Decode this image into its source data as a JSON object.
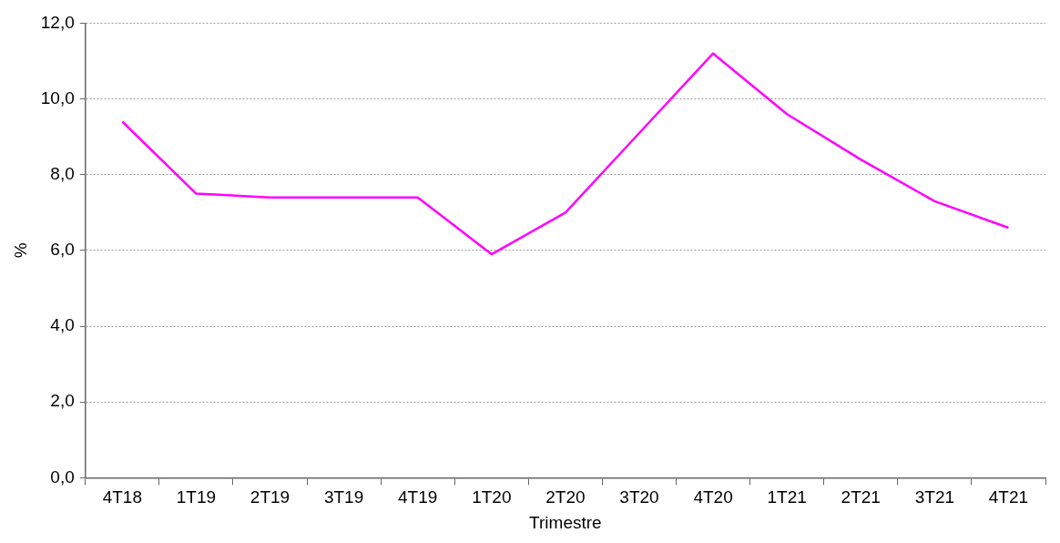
{
  "chart_data": {
    "type": "line",
    "xlabel": "Trimestre",
    "ylabel": "%",
    "categories": [
      "4T18",
      "1T19",
      "2T19",
      "3T19",
      "4T19",
      "1T20",
      "2T20",
      "3T20",
      "4T20",
      "1T21",
      "2T21",
      "3T21",
      "4T21"
    ],
    "series": [
      {
        "color": "#ff00ff",
        "values": [
          9.4,
          7.5,
          7.4,
          7.4,
          7.4,
          5.9,
          7.0,
          9.1,
          11.2,
          9.6,
          8.4,
          7.3,
          6.6
        ]
      }
    ],
    "ylim": [
      0,
      12
    ],
    "yticks": [
      {
        "value": 0,
        "label": "0,0"
      },
      {
        "value": 2,
        "label": "2,0"
      },
      {
        "value": 4,
        "label": "4,0"
      },
      {
        "value": 6,
        "label": "6,0"
      },
      {
        "value": 8,
        "label": "8,0"
      },
      {
        "value": 10,
        "label": "10,0"
      },
      {
        "value": 12,
        "label": "12,0"
      }
    ],
    "grid": "y",
    "legend": false,
    "marker": "none",
    "line_style": "solid"
  }
}
